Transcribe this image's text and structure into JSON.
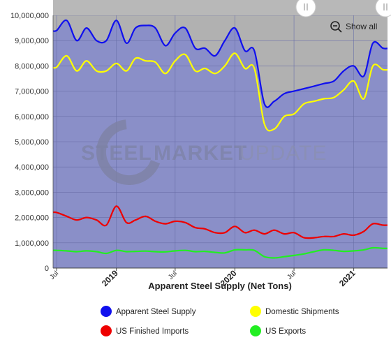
{
  "chart_data": {
    "type": "area",
    "title": "",
    "xlabel": "Apparent Steel Supply (Net Tons)",
    "ylabel": "",
    "ylim": [
      0,
      10000000
    ],
    "y_ticks": [
      {
        "value": 0,
        "label": "0"
      },
      {
        "value": 1000000,
        "label": "1,000,000"
      },
      {
        "value": 2000000,
        "label": "2,000,000"
      },
      {
        "value": 3000000,
        "label": "3,000,000"
      },
      {
        "value": 4000000,
        "label": "4,000,000"
      },
      {
        "value": 5000000,
        "label": "5,000,000"
      },
      {
        "value": 6000000,
        "label": "6,000,000"
      },
      {
        "value": 7000000,
        "label": "7,000,000"
      },
      {
        "value": 8000000,
        "label": "8,000,000"
      },
      {
        "value": 9000000,
        "label": "9,000,000"
      },
      {
        "value": 10000000,
        "label": "10,000,000"
      }
    ],
    "x_ticks": [
      {
        "date": "2018-07",
        "label": "Jul",
        "bold": false
      },
      {
        "date": "2019-01",
        "label": "2019",
        "bold": true
      },
      {
        "date": "2019-07",
        "label": "Jul",
        "bold": false
      },
      {
        "date": "2020-01",
        "label": "2020",
        "bold": true
      },
      {
        "date": "2020-07",
        "label": "Jul",
        "bold": false
      },
      {
        "date": "2021-01",
        "label": "2021",
        "bold": true
      }
    ],
    "grid": true,
    "legend_position": "bottom",
    "navigator_selection": "full",
    "series": [
      {
        "name": "Apparent Steel Supply",
        "color": "#1010ee",
        "x": [
          "2018-07-01",
          "2018-08-01",
          "2018-09-01",
          "2018-10-01",
          "2018-11-01",
          "2018-12-01",
          "2019-01-01",
          "2019-02-01",
          "2019-03-01",
          "2019-04-01",
          "2019-05-01",
          "2019-06-01",
          "2019-07-01",
          "2019-08-01",
          "2019-09-01",
          "2019-10-01",
          "2019-11-01",
          "2019-12-01",
          "2020-01-01",
          "2020-02-01",
          "2020-03-01",
          "2020-04-01",
          "2020-05-01",
          "2020-06-01",
          "2020-07-01",
          "2020-08-01",
          "2020-09-01",
          "2020-10-01",
          "2020-11-01",
          "2020-12-01",
          "2021-01-01",
          "2021-02-01",
          "2021-03-01",
          "2021-04-01"
        ],
        "values": [
          9400000,
          9800000,
          9000000,
          9500000,
          9000000,
          9000000,
          9800000,
          8900000,
          9500000,
          9600000,
          9500000,
          8800000,
          9300000,
          9500000,
          8700000,
          8700000,
          8400000,
          9000000,
          9500000,
          8600000,
          8600000,
          6500000,
          6600000,
          6900000,
          7000000,
          7100000,
          7200000,
          7300000,
          7400000,
          7800000,
          8000000,
          7600000,
          8900000,
          8700000
        ]
      },
      {
        "name": "Domestic Shipments",
        "color": "#ffff00",
        "x": [
          "2018-07-01",
          "2018-08-01",
          "2018-09-01",
          "2018-10-01",
          "2018-11-01",
          "2018-12-01",
          "2019-01-01",
          "2019-02-01",
          "2019-03-01",
          "2019-04-01",
          "2019-05-01",
          "2019-06-01",
          "2019-07-01",
          "2019-08-01",
          "2019-09-01",
          "2019-10-01",
          "2019-11-01",
          "2019-12-01",
          "2020-01-01",
          "2020-02-01",
          "2020-03-01",
          "2020-04-01",
          "2020-05-01",
          "2020-06-01",
          "2020-07-01",
          "2020-08-01",
          "2020-09-01",
          "2020-10-01",
          "2020-11-01",
          "2020-12-01",
          "2021-01-01",
          "2021-02-01",
          "2021-03-01",
          "2021-04-01"
        ],
        "values": [
          7950000,
          8400000,
          7800000,
          8200000,
          7800000,
          7800000,
          8100000,
          7800000,
          8300000,
          8200000,
          8150000,
          7700000,
          8200000,
          8450000,
          7800000,
          7900000,
          7700000,
          8000000,
          8500000,
          7900000,
          7900000,
          5700000,
          5500000,
          6000000,
          6100000,
          6500000,
          6600000,
          6700000,
          6750000,
          7050000,
          7400000,
          6700000,
          8000000,
          7850000
        ]
      },
      {
        "name": "US Finished Imports",
        "color": "#ee0000",
        "x": [
          "2018-07-01",
          "2018-08-01",
          "2018-09-01",
          "2018-10-01",
          "2018-11-01",
          "2018-12-01",
          "2019-01-01",
          "2019-02-01",
          "2019-03-01",
          "2019-04-01",
          "2019-05-01",
          "2019-06-01",
          "2019-07-01",
          "2019-08-01",
          "2019-09-01",
          "2019-10-01",
          "2019-11-01",
          "2019-12-01",
          "2020-01-01",
          "2020-02-01",
          "2020-03-01",
          "2020-04-01",
          "2020-05-01",
          "2020-06-01",
          "2020-07-01",
          "2020-08-01",
          "2020-09-01",
          "2020-10-01",
          "2020-11-01",
          "2020-12-01",
          "2021-01-01",
          "2021-02-01",
          "2021-03-01",
          "2021-04-01"
        ],
        "values": [
          2200000,
          2050000,
          1900000,
          2000000,
          1900000,
          1700000,
          2450000,
          1800000,
          1900000,
          2050000,
          1850000,
          1750000,
          1850000,
          1800000,
          1600000,
          1550000,
          1400000,
          1400000,
          1650000,
          1400000,
          1500000,
          1350000,
          1500000,
          1350000,
          1400000,
          1200000,
          1200000,
          1250000,
          1250000,
          1350000,
          1300000,
          1450000,
          1750000,
          1700000
        ]
      },
      {
        "name": "US Exports",
        "color": "#22ee22",
        "x": [
          "2018-07-01",
          "2018-08-01",
          "2018-09-01",
          "2018-10-01",
          "2018-11-01",
          "2018-12-01",
          "2019-01-01",
          "2019-02-01",
          "2019-03-01",
          "2019-04-01",
          "2019-05-01",
          "2019-06-01",
          "2019-07-01",
          "2019-08-01",
          "2019-09-01",
          "2019-10-01",
          "2019-11-01",
          "2019-12-01",
          "2020-01-01",
          "2020-02-01",
          "2020-03-01",
          "2020-04-01",
          "2020-05-01",
          "2020-06-01",
          "2020-07-01",
          "2020-08-01",
          "2020-09-01",
          "2020-10-01",
          "2020-11-01",
          "2020-12-01",
          "2021-01-01",
          "2021-02-01",
          "2021-03-01",
          "2021-04-01"
        ],
        "values": [
          700000,
          680000,
          650000,
          680000,
          650000,
          580000,
          700000,
          650000,
          660000,
          670000,
          650000,
          640000,
          680000,
          700000,
          650000,
          660000,
          620000,
          600000,
          720000,
          720000,
          700000,
          450000,
          400000,
          450000,
          500000,
          560000,
          650000,
          720000,
          700000,
          660000,
          680000,
          720000,
          800000,
          780000
        ]
      }
    ]
  },
  "show_all": {
    "label": "Show all",
    "icon": "zoom-out-icon"
  },
  "watermark": {
    "word1": "STEEL",
    "word2": "MARKET",
    "word3": "UPDATE"
  },
  "colors": {
    "plot_fill": "#8a8fc8",
    "upper_band": "#b1b1b1",
    "grid": "#6a6fa8"
  }
}
